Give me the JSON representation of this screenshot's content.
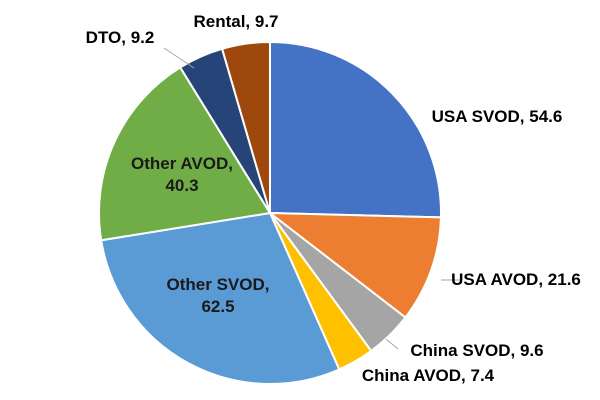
{
  "chart_data": {
    "type": "pie",
    "title": "",
    "start_angle_deg": 0,
    "direction": "clockwise",
    "slices": [
      {
        "label": "USA SVOD",
        "value": 54.6,
        "text": "USA SVOD, 54.6",
        "color": "#4472c4"
      },
      {
        "label": "USA AVOD",
        "value": 21.6,
        "text": "USA AVOD, 21.6",
        "color": "#ed7d31"
      },
      {
        "label": "China SVOD",
        "value": 9.6,
        "text": "China SVOD, 9.6",
        "color": "#a5a5a5"
      },
      {
        "label": "China AVOD",
        "value": 7.4,
        "text": "China AVOD, 7.4",
        "color": "#ffc000"
      },
      {
        "label": "Other SVOD",
        "value": 62.5,
        "text": [
          "Other SVOD,",
          "62.5"
        ],
        "color": "#5b9bd5"
      },
      {
        "label": "Other AVOD",
        "value": 40.3,
        "text": [
          "Other AVOD,",
          "40.3"
        ],
        "color": "#70ad47"
      },
      {
        "label": "DTO",
        "value": 9.2,
        "text": "DTO, 9.2",
        "color": "#264478"
      },
      {
        "label": "Rental",
        "value": 9.7,
        "text": "Rental, 9.7",
        "color": "#9e480e"
      }
    ]
  }
}
